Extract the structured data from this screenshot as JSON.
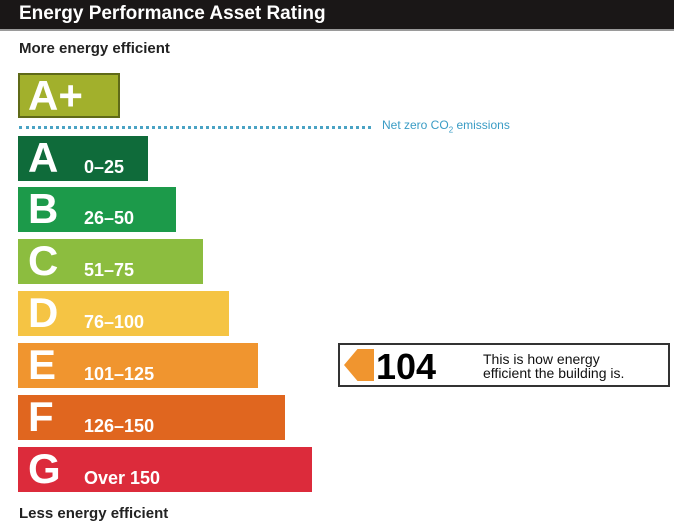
{
  "title": "Energy Performance Asset Rating",
  "top_label": "More energy efficient",
  "bottom_label": "Less energy efficient",
  "net_zero": {
    "text": "Net zero CO",
    "sub": "2",
    "suffix": " emissions"
  },
  "bands": [
    {
      "letter": "A+",
      "range": "",
      "color": "#a2b02c"
    },
    {
      "letter": "A",
      "range": "0–25",
      "color": "#0f6b3a"
    },
    {
      "letter": "B",
      "range": "26–50",
      "color": "#1c9a4a"
    },
    {
      "letter": "C",
      "range": "51–75",
      "color": "#8cbd3f"
    },
    {
      "letter": "D",
      "range": "76–100",
      "color": "#f5c444"
    },
    {
      "letter": "E",
      "range": "101–125",
      "color": "#f0952f"
    },
    {
      "letter": "F",
      "range": "126–150",
      "color": "#e0661f"
    },
    {
      "letter": "G",
      "range": "Over 150",
      "color": "#dc2b3b"
    }
  ],
  "indicator": {
    "value": "104",
    "text_line1": "This is how energy",
    "text_line2": "efficient the building is.",
    "color": "#f0952f"
  }
}
